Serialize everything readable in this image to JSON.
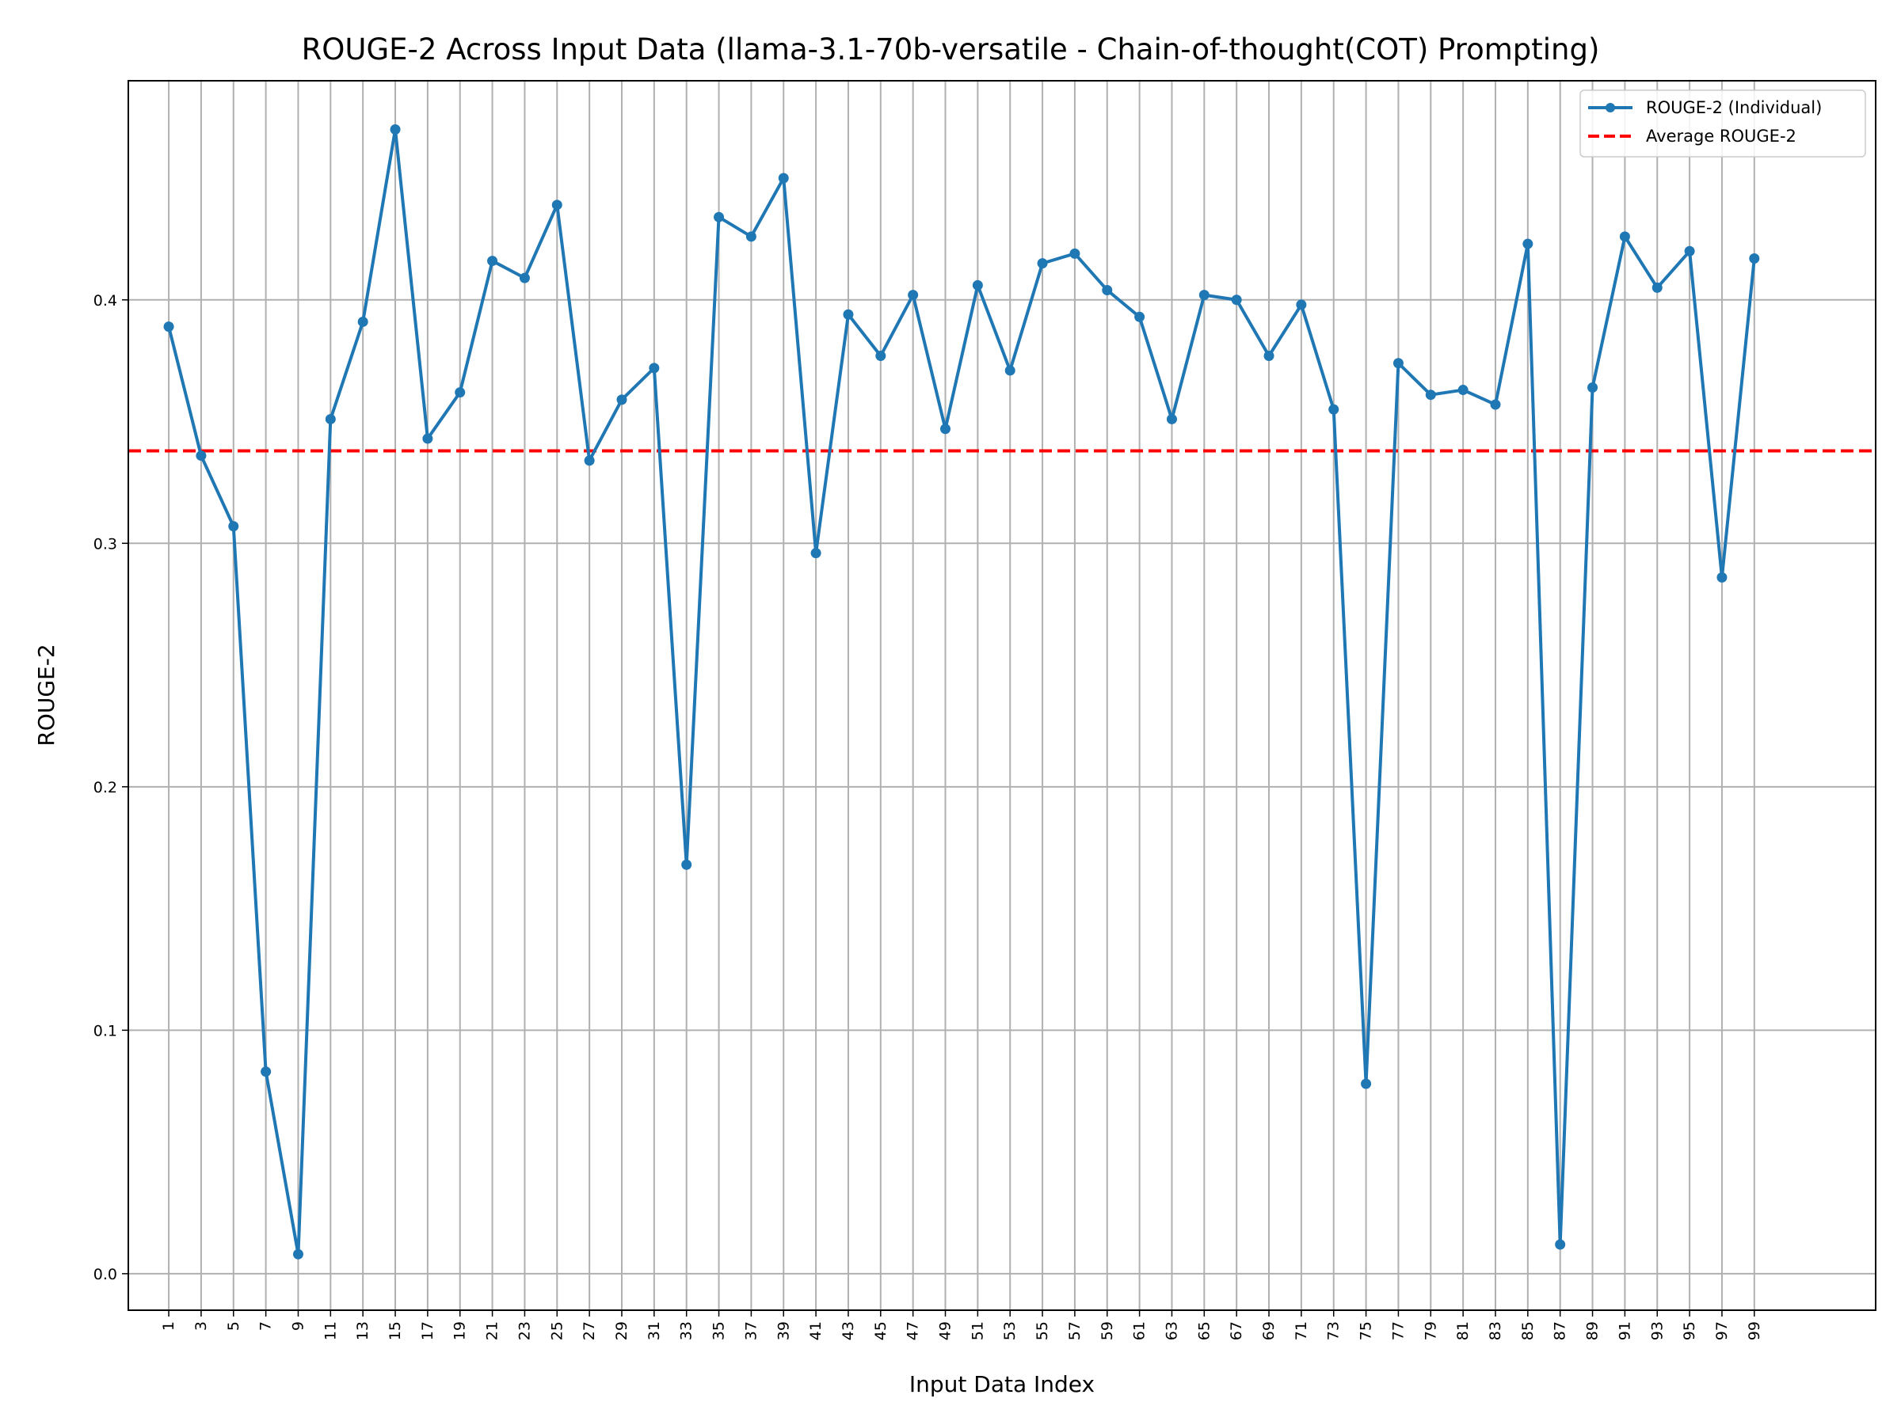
{
  "chart_data": {
    "type": "line",
    "title": "ROUGE-2 Across Input Data (llama-3.1-70b-versatile - Chain-of-thought(COT) Prompting)",
    "xlabel": "Input Data Index",
    "ylabel": "ROUGE-2",
    "xlim": [
      -1.5,
      106.5
    ],
    "ylim": [
      -0.015,
      0.49
    ],
    "x_ticks": [
      1,
      3,
      5,
      7,
      9,
      11,
      13,
      15,
      17,
      19,
      21,
      23,
      25,
      27,
      29,
      31,
      33,
      35,
      37,
      39,
      41,
      43,
      45,
      47,
      49,
      51,
      53,
      55,
      57,
      59,
      61,
      63,
      65,
      67,
      69,
      71,
      73,
      75,
      77,
      79,
      81,
      83,
      85,
      87,
      89,
      91,
      93,
      95,
      97,
      99
    ],
    "y_ticks": [
      0.0,
      0.1,
      0.2,
      0.3,
      0.4
    ],
    "y_tick_labels": [
      "0.0",
      "0.1",
      "0.2",
      "0.3",
      "0.4"
    ],
    "grid": true,
    "legend_position": "top-right",
    "series": [
      {
        "name": "ROUGE-2 (Individual)",
        "color": "#1f77b4",
        "style": "line-with-markers",
        "x": [
          1,
          3,
          5,
          7,
          9,
          11,
          13,
          15,
          17,
          19,
          21,
          23,
          25,
          27,
          29,
          31,
          33,
          35,
          37,
          39,
          41,
          43,
          45,
          47,
          49,
          51,
          53,
          55,
          57,
          59,
          61,
          63,
          65,
          67,
          69,
          71,
          73,
          75,
          77,
          79,
          81,
          83,
          85,
          87,
          89,
          91,
          93,
          95,
          97,
          99
        ],
        "values": [
          0.389,
          0.336,
          0.307,
          0.083,
          0.008,
          0.351,
          0.391,
          0.47,
          0.343,
          0.362,
          0.416,
          0.409,
          0.439,
          0.334,
          0.359,
          0.372,
          0.168,
          0.434,
          0.426,
          0.45,
          0.296,
          0.394,
          0.377,
          0.402,
          0.347,
          0.406,
          0.371,
          0.415,
          0.419,
          0.404,
          0.393,
          0.351,
          0.402,
          0.4,
          0.377,
          0.398,
          0.355,
          0.078,
          0.374,
          0.361,
          0.363,
          0.357,
          0.423,
          0.012,
          0.364,
          0.426,
          0.405,
          0.42,
          0.286,
          0.417
        ]
      },
      {
        "name": "Average ROUGE-2",
        "color": "#ff0000",
        "style": "dashed-horizontal",
        "value": 0.338
      }
    ]
  }
}
